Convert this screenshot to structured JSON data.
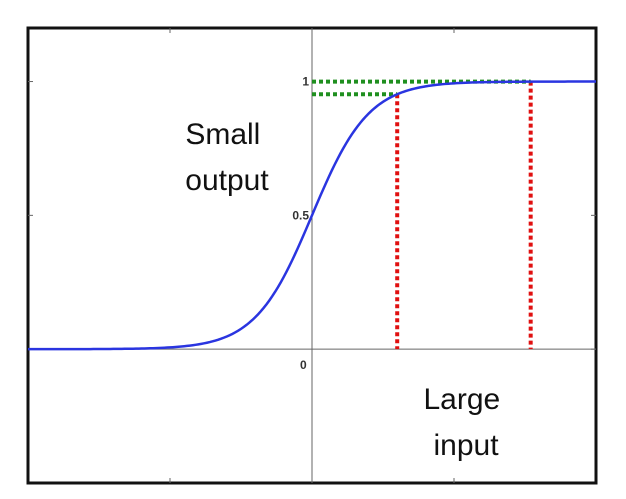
{
  "chart_data": {
    "type": "line",
    "title": "",
    "xlabel": "",
    "ylabel": "",
    "xlim": [
      -10,
      10
    ],
    "ylim": [
      -0.5,
      1.2
    ],
    "series": [
      {
        "function": "sigmoid",
        "color": "#2a35e0",
        "x_range": [
          -10,
          10
        ]
      }
    ],
    "tick_labels": [
      {
        "axis": "x",
        "value": 0,
        "label": "0"
      },
      {
        "axis": "y",
        "value": 0.5,
        "label": "0.5"
      },
      {
        "axis": "y",
        "value": 1,
        "label": "1"
      }
    ],
    "annotations": {
      "small_output": {
        "lines": [
          "Small",
          "output"
        ],
        "color": "#1f8f1f"
      },
      "large_input": {
        "lines": [
          "Large",
          "input"
        ],
        "color": "#e01010"
      },
      "markers": [
        {
          "x": 3,
          "x_guide_color": "#e01010",
          "y_guide_color": "#1f8f1f"
        },
        {
          "x": 7.7,
          "x_guide_color": "#e01010",
          "y_guide_color": "#1f8f1f"
        }
      ]
    },
    "grid": false
  }
}
